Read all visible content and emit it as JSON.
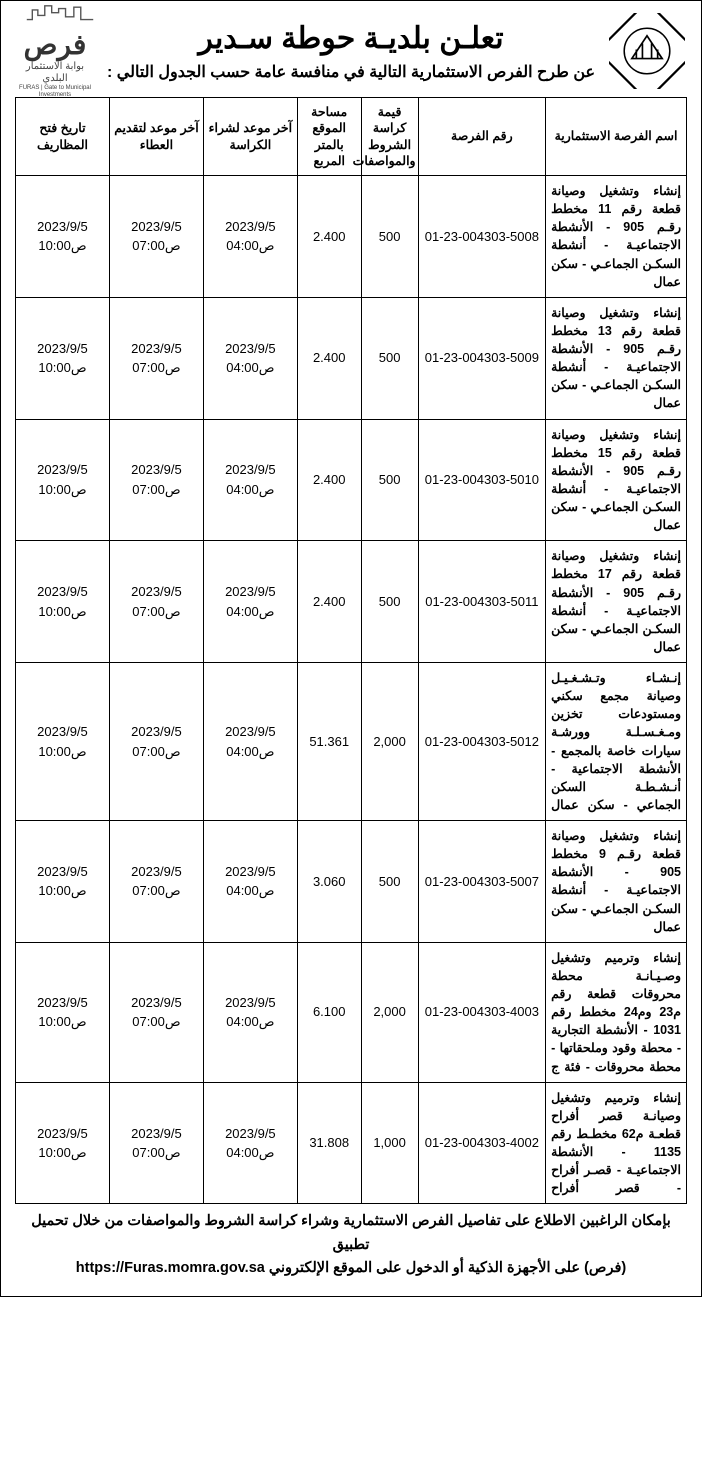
{
  "header": {
    "main_title": "تعلـن بلديـة حوطة سـدير",
    "sub_title": "عن طرح الفرص الاستثمارية التالية في منافسة عامة حسب الجدول التالي :",
    "furas_word": "فرص",
    "furas_line1": "بوابة الاستثمار البلدي",
    "furas_line2": "FURAS | Gate to Municipal Investments"
  },
  "table": {
    "columns": [
      "اسم الفرصة الاستثمارية",
      "رقم الفرصة",
      "قيمة كراسة الشروط والمواصفات",
      "مساحة الموقع بالمتر المربع",
      "آخر موعد لشراء الكراسة",
      "آخر موعد لتقديم العطاء",
      "تاريخ فتح المظاريف"
    ],
    "rows": [
      {
        "name": "إنشاء وتشغيل وصيانة قطعة رقم 11 مخطط رقـم 905 - الأنشطة الاجتماعيـة - أنشطة السكـن الجماعـي - سكن عمال",
        "number": "01-23-004303-5008",
        "price": "500",
        "area": "2.400",
        "buy_date": "2023/9/5",
        "buy_time": "04:00ص",
        "bid_date": "2023/9/5",
        "bid_time": "07:00ص",
        "open_date": "2023/9/5",
        "open_time": "10:00ص"
      },
      {
        "name": "إنشاء وتشغيل وصيانة قطعة رقم 13 مخطط رقـم 905 - الأنشطة الاجتماعيـة - أنشطة السكـن الجماعـي - سكن عمال",
        "number": "01-23-004303-5009",
        "price": "500",
        "area": "2.400",
        "buy_date": "2023/9/5",
        "buy_time": "04:00ص",
        "bid_date": "2023/9/5",
        "bid_time": "07:00ص",
        "open_date": "2023/9/5",
        "open_time": "10:00ص"
      },
      {
        "name": "إنشاء وتشغيل وصيانة قطعة رقم 15 مخطط رقـم 905 - الأنشطة الاجتماعيـة - أنشطة السكـن الجماعـي - سكن عمال",
        "number": "01-23-004303-5010",
        "price": "500",
        "area": "2.400",
        "buy_date": "2023/9/5",
        "buy_time": "04:00ص",
        "bid_date": "2023/9/5",
        "bid_time": "07:00ص",
        "open_date": "2023/9/5",
        "open_time": "10:00ص"
      },
      {
        "name": "إنشاء وتشغيل وصيانة قطعة رقم 17 مخطط رقـم 905 - الأنشطة الاجتماعيـة - أنشطة السكـن الجماعـي - سكن عمال",
        "number": "01-23-004303-5011",
        "price": "500",
        "area": "2.400",
        "buy_date": "2023/9/5",
        "buy_time": "04:00ص",
        "bid_date": "2023/9/5",
        "bid_time": "07:00ص",
        "open_date": "2023/9/5",
        "open_time": "10:00ص"
      },
      {
        "name": "إنـشـاء وتـشـغـيـل وصيانة مجمع سكني ومستودعات تخزين ومـغـسـلـة وورشـة سيارات خاصة بالمجمع - الأنشطة الاجتماعية - أنـشـطـة السكن الجماعي - سكن عمال",
        "number": "01-23-004303-5012",
        "price": "2,000",
        "area": "51.361",
        "buy_date": "2023/9/5",
        "buy_time": "04:00ص",
        "bid_date": "2023/9/5",
        "bid_time": "07:00ص",
        "open_date": "2023/9/5",
        "open_time": "10:00ص"
      },
      {
        "name": "إنشاء وتشغيل وصيانة قطعة رقـم 9 مخطط 905 - الأنشطة الاجتماعيـة - أنشطة السكـن الجماعـي - سكن عمال",
        "number": "01-23-004303-5007",
        "price": "500",
        "area": "3.060",
        "buy_date": "2023/9/5",
        "buy_time": "04:00ص",
        "bid_date": "2023/9/5",
        "bid_time": "07:00ص",
        "open_date": "2023/9/5",
        "open_time": "10:00ص"
      },
      {
        "name": "إنشاء وترميم وتشغيل وصـيـانـة محطة محروقات قطعة رقم م23 وم24 مخطط رقم 1031 - الأنشطة التجارية - محطة وقود وملحقاتها - محطة محروقات - فئة ج",
        "number": "01-23-004303-4003",
        "price": "2,000",
        "area": "6.100",
        "buy_date": "2023/9/5",
        "buy_time": "04:00ص",
        "bid_date": "2023/9/5",
        "bid_time": "07:00ص",
        "open_date": "2023/9/5",
        "open_time": "10:00ص"
      },
      {
        "name": "إنشاء وترميم وتشغيل وصيانـة قصر أفراح قطعـة م62 مخطـط رقم 1135 - الأنشطة الاجتماعيـة - قصـر أفراح - قصر أفراح",
        "number": "01-23-004303-4002",
        "price": "1,000",
        "area": "31.808",
        "buy_date": "2023/9/5",
        "buy_time": "04:00ص",
        "bid_date": "2023/9/5",
        "bid_time": "07:00ص",
        "open_date": "2023/9/5",
        "open_time": "10:00ص"
      }
    ]
  },
  "footer": {
    "line1": "بإمكان الراغبين الاطلاع على تفاصيل الفرص الاستثمارية وشراء كراسة الشروط والمواصفات من خلال تحميل تطبيق",
    "line2_pre": "(فرص) على الأجهزة الذكية أو الدخول على الموقع الإلكتروني ",
    "url": "https://Furas.momra.gov.sa"
  }
}
